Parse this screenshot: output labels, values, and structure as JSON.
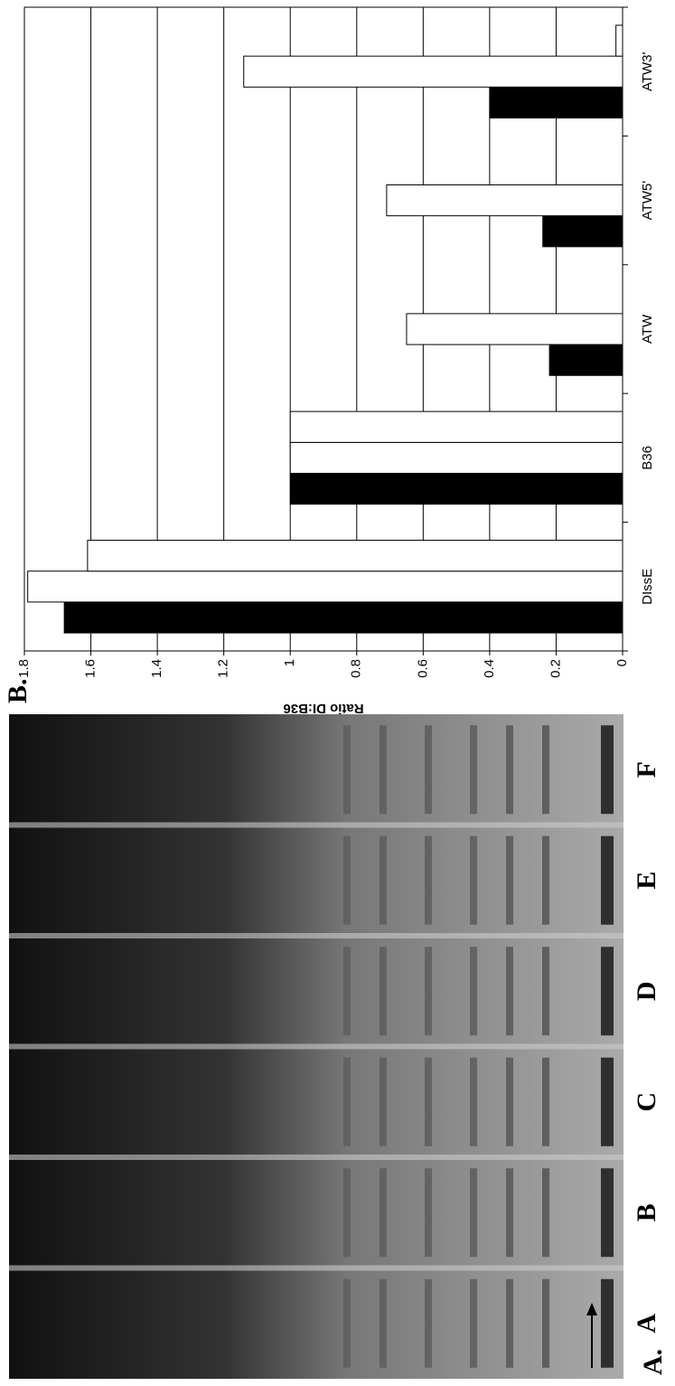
{
  "panel_a": {
    "label": "A.",
    "lanes": [
      "A",
      "B",
      "C",
      "D",
      "E",
      "F"
    ]
  },
  "chart_data": {
    "type": "bar",
    "annotations": [
      "B."
    ],
    "y_label": "Ratio DI:B36",
    "categories": [
      "DIssE",
      "B36",
      "ATW",
      "ATW5'",
      "ATW3'"
    ],
    "series": [
      {
        "color": "#000000",
        "values": [
          1.68,
          1,
          0.22,
          0.24,
          0.4
        ]
      },
      {
        "color": "#ffffff",
        "values": [
          1.79,
          1,
          0.65,
          0.71,
          1.14
        ]
      },
      {
        "color": "#ffffff",
        "values": [
          1.61,
          1,
          0,
          0,
          0.02
        ]
      }
    ],
    "ylim": [
      0,
      1.8
    ],
    "yticks": [
      0,
      0.2,
      0.4,
      0.6,
      0.8,
      1,
      1.2,
      1.4,
      1.6,
      1.8
    ],
    "grid": true
  }
}
